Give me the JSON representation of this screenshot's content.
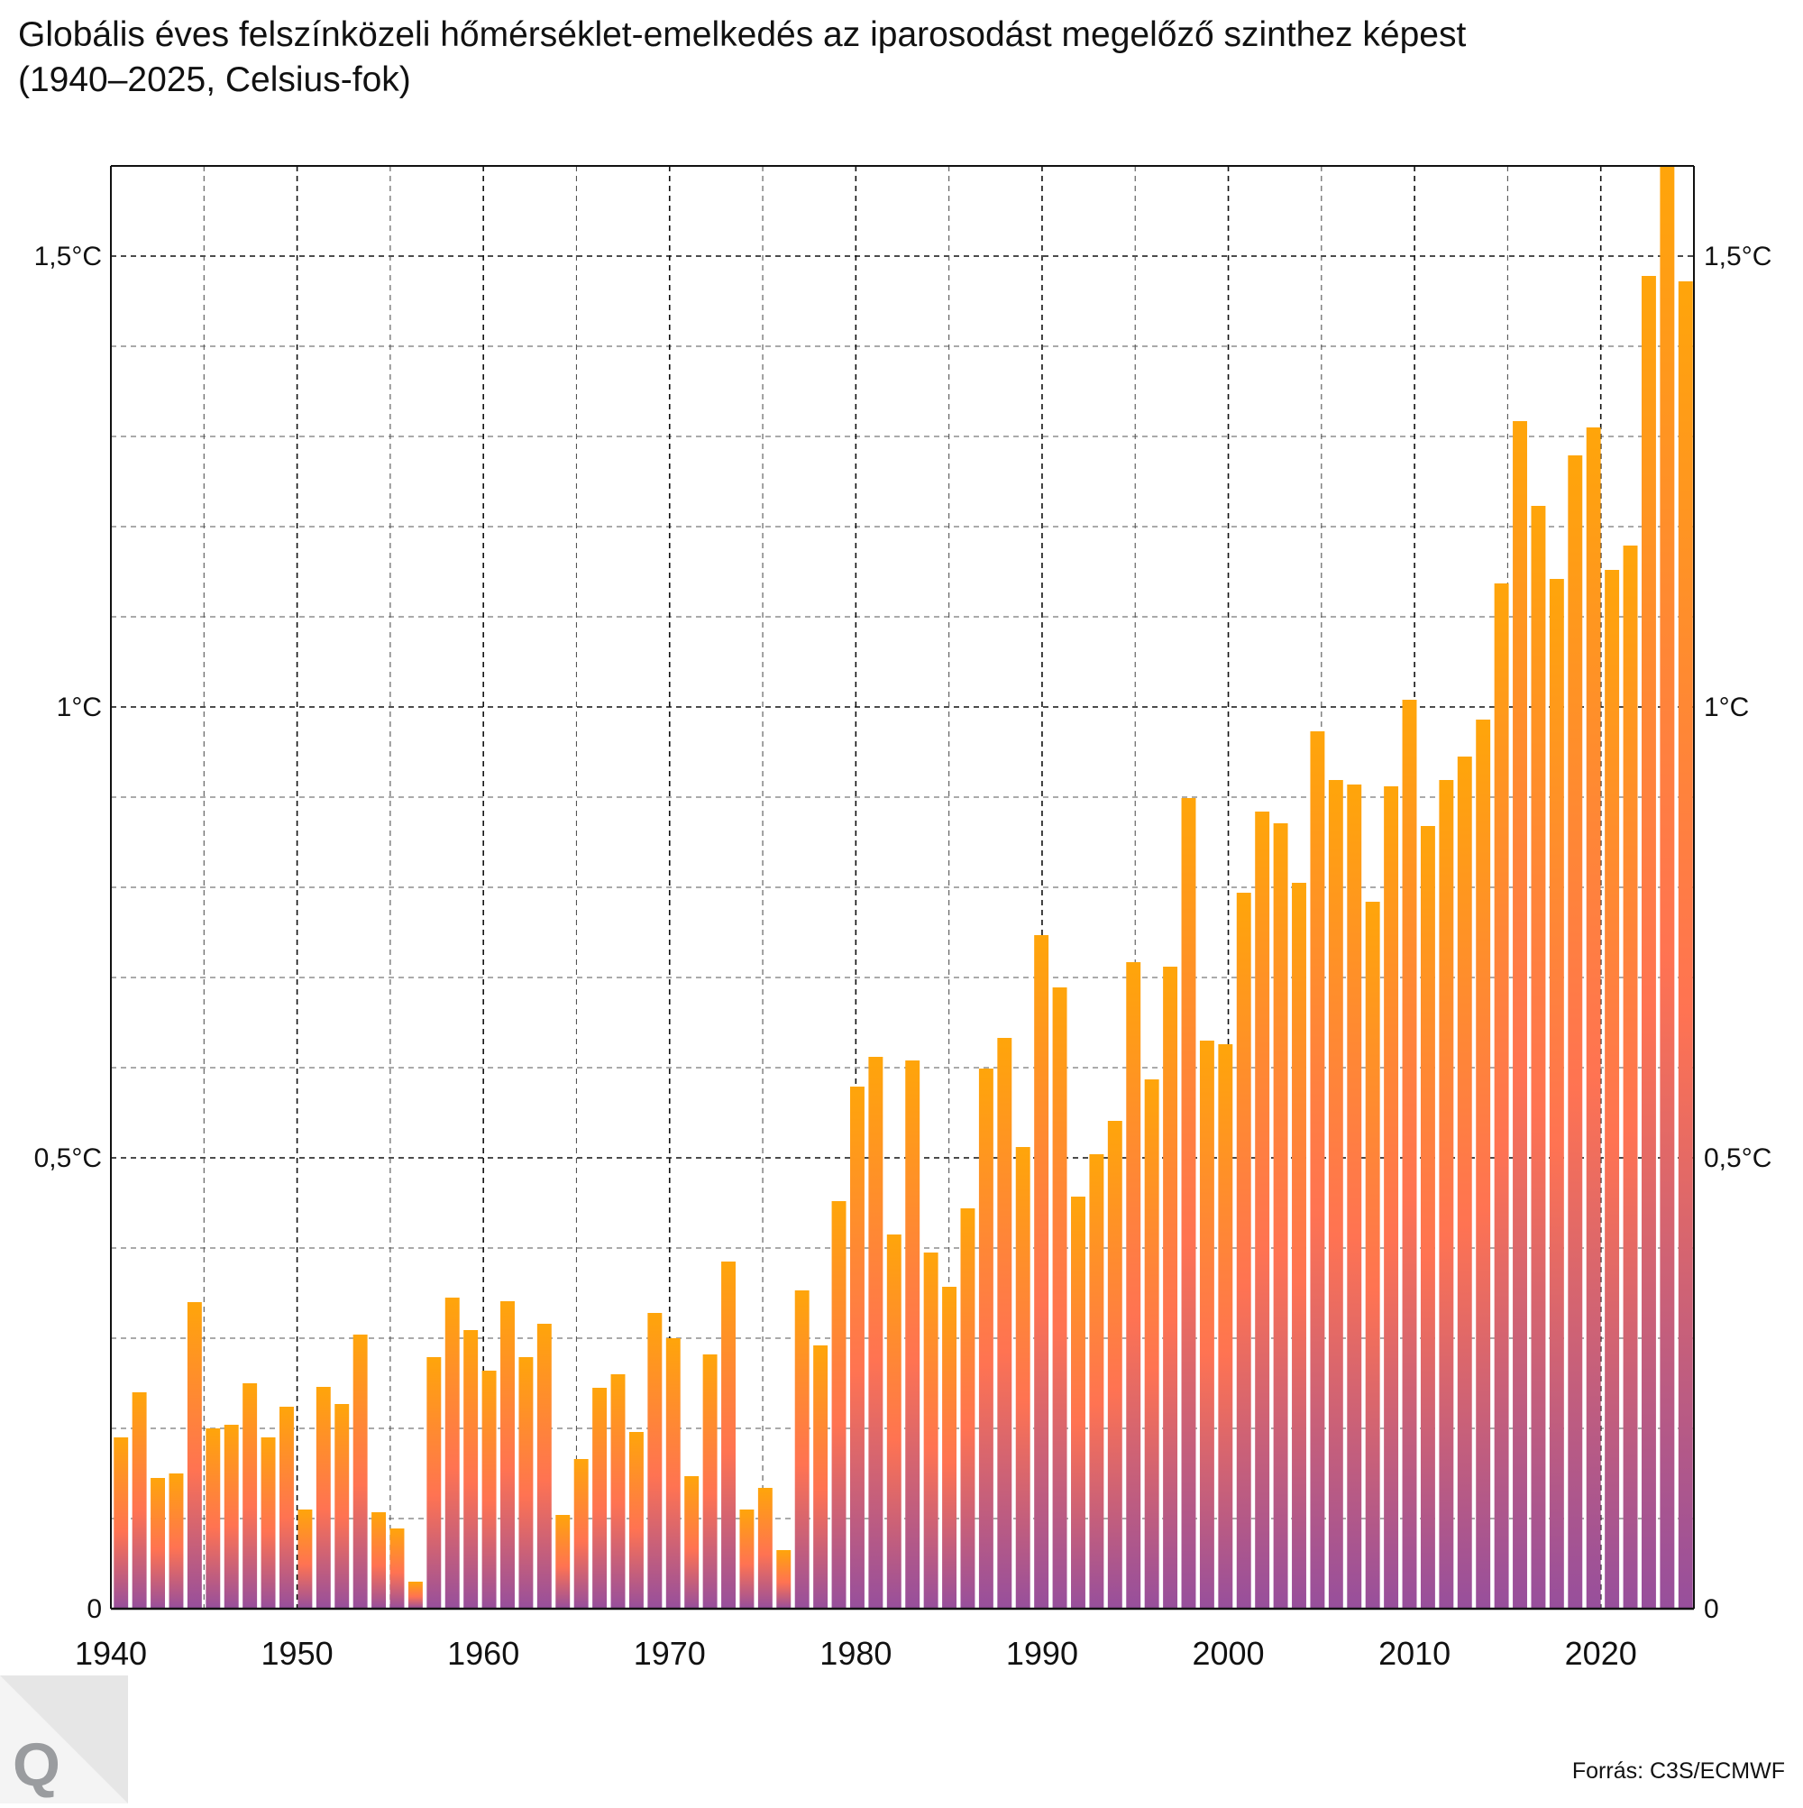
{
  "title": {
    "line1": "Globális éves felszínközeli hőmérséklet-emelkedés az iparosodást megelőző szinthez képest",
    "line2": "(1940–2025, Celsius-fok)"
  },
  "source": "Forrás: C3S/ECMWF",
  "logo": "Q",
  "colors": {
    "bar_top": "#FFA50A",
    "bar_mid": "#FF7352",
    "bar_bottom": "#974F9C",
    "grid": "#333333"
  },
  "chart_data": {
    "type": "bar",
    "title": "Globális éves felszínközeli hőmérséklet-emelkedés az iparosodást megelőző szinthez képest (1940–2025, Celsius-fok)",
    "xlabel": "",
    "ylabel": "",
    "ylim": [
      0,
      1.6
    ],
    "xlim": [
      1940,
      2025
    ],
    "grid": true,
    "x_ticks": [
      "1940",
      "1950",
      "1960",
      "1970",
      "1980",
      "1990",
      "2000",
      "2010",
      "2020"
    ],
    "y_ticks": [
      {
        "value": 0,
        "label": "0"
      },
      {
        "value": 0.5,
        "label": "0,5°C"
      },
      {
        "value": 1,
        "label": "1°C"
      },
      {
        "value": 1.5,
        "label": "1,5°C"
      }
    ],
    "categories": [
      1940,
      1941,
      1942,
      1943,
      1944,
      1945,
      1946,
      1947,
      1948,
      1949,
      1950,
      1951,
      1952,
      1953,
      1954,
      1955,
      1956,
      1957,
      1958,
      1959,
      1960,
      1961,
      1962,
      1963,
      1964,
      1965,
      1966,
      1967,
      1968,
      1969,
      1970,
      1971,
      1972,
      1973,
      1974,
      1975,
      1976,
      1977,
      1978,
      1979,
      1980,
      1981,
      1982,
      1983,
      1984,
      1985,
      1986,
      1987,
      1988,
      1989,
      1990,
      1991,
      1992,
      1993,
      1994,
      1995,
      1996,
      1997,
      1998,
      1999,
      2000,
      2001,
      2002,
      2003,
      2004,
      2005,
      2006,
      2007,
      2008,
      2009,
      2010,
      2011,
      2012,
      2013,
      2014,
      2015,
      2016,
      2017,
      2018,
      2019,
      2020,
      2021,
      2022,
      2023,
      2024,
      2025
    ],
    "values": [
      0.19,
      0.24,
      0.145,
      0.15,
      0.34,
      0.2,
      0.204,
      0.25,
      0.19,
      0.224,
      0.11,
      0.246,
      0.227,
      0.304,
      0.107,
      0.089,
      0.03,
      0.279,
      0.345,
      0.309,
      0.264,
      0.341,
      0.279,
      0.316,
      0.104,
      0.166,
      0.245,
      0.26,
      0.196,
      0.328,
      0.3,
      0.147,
      0.282,
      0.385,
      0.11,
      0.134,
      0.065,
      0.353,
      0.292,
      0.452,
      0.579,
      0.612,
      0.415,
      0.608,
      0.395,
      0.357,
      0.444,
      0.599,
      0.633,
      0.512,
      0.747,
      0.689,
      0.457,
      0.504,
      0.541,
      0.717,
      0.587,
      0.712,
      0.899,
      0.63,
      0.626,
      0.794,
      0.884,
      0.871,
      0.805,
      0.973,
      0.919,
      0.914,
      0.784,
      0.912,
      1.008,
      0.868,
      0.919,
      0.945,
      0.986,
      1.137,
      1.317,
      1.223,
      1.142,
      1.279,
      1.31,
      1.152,
      1.179,
      1.478,
      1.6,
      1.472
    ]
  }
}
